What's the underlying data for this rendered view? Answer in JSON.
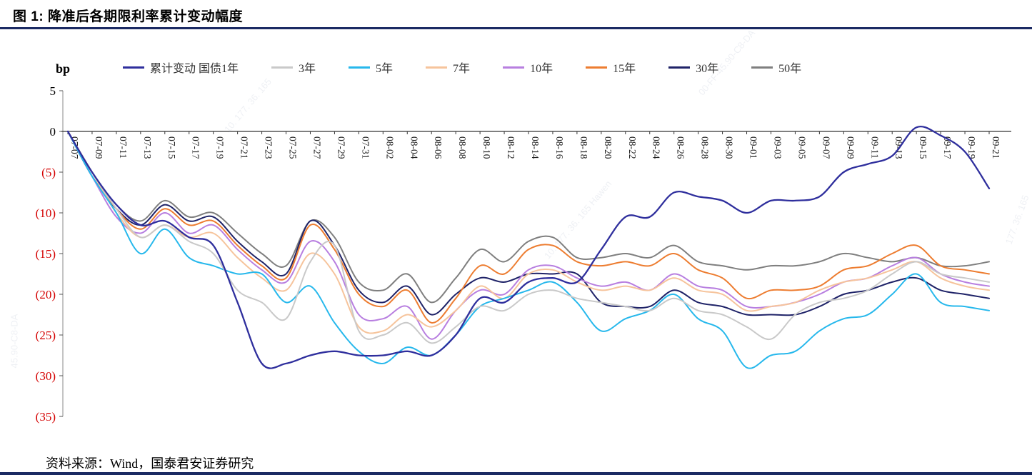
{
  "page": {
    "title": "图 1:  降准后各期限利率累计变动幅度",
    "source": "资料来源：Wind，国泰君安证券研究",
    "accent_color": "#1b2a63"
  },
  "watermarks": [
    "10. 177. 36. 165",
    "00-FF-45.90-C8-DA",
    "10. 177. 36. 165  Hawen",
    "45.90-C8-DA",
    "177. 36. 165"
  ],
  "chart_data": {
    "type": "line",
    "title": "降准后各期限利率累计变动幅度",
    "unit_label": "bp",
    "xlabel": "",
    "ylabel": "bp",
    "ylim": [
      -35,
      5
    ],
    "ytick_step": 5,
    "grid": "off",
    "legend_position": "top",
    "negative_tick_color": "#d40000",
    "axis_color": "#333333",
    "yticks": [
      {
        "value": 5,
        "label": "5"
      },
      {
        "value": 0,
        "label": "0"
      },
      {
        "value": -5,
        "label": "(5)"
      },
      {
        "value": -10,
        "label": "(10)"
      },
      {
        "value": -15,
        "label": "(15)"
      },
      {
        "value": -20,
        "label": "(20)"
      },
      {
        "value": -25,
        "label": "(25)"
      },
      {
        "value": -30,
        "label": "(30)"
      },
      {
        "value": -35,
        "label": "(35)"
      }
    ],
    "categories": [
      "07-07",
      "07-09",
      "07-11",
      "07-13",
      "07-15",
      "07-17",
      "07-19",
      "07-21",
      "07-23",
      "07-25",
      "07-27",
      "07-29",
      "07-31",
      "08-02",
      "08-04",
      "08-06",
      "08-08",
      "08-10",
      "08-12",
      "08-14",
      "08-16",
      "08-18",
      "08-20",
      "08-22",
      "08-24",
      "08-26",
      "08-28",
      "08-30",
      "09-01",
      "09-03",
      "09-05",
      "09-07",
      "09-09",
      "09-11",
      "09-13",
      "09-15",
      "09-17",
      "09-19",
      "09-21"
    ],
    "series": [
      {
        "name": "50年",
        "color": "#7f7f7f",
        "width": 2,
        "values": [
          0,
          -5,
          -9,
          -11,
          -8.5,
          -10.5,
          -10,
          -12.5,
          -15,
          -16.5,
          -11,
          -13,
          -18.5,
          -19.5,
          -17.5,
          -21,
          -18,
          -14.5,
          -16,
          -13.5,
          -13,
          -15.5,
          -15.5,
          -15,
          -15.5,
          -14,
          -16,
          -16.5,
          -17,
          -16.5,
          -16.5,
          -16,
          -15,
          -15.5,
          -16,
          -15.5,
          -16.5,
          -16.5,
          -16
        ]
      },
      {
        "name": "30年",
        "color": "#1f2368",
        "width": 2,
        "values": [
          0,
          -5.5,
          -9.5,
          -11.5,
          -9,
          -11,
          -10.5,
          -13.5,
          -16,
          -17.5,
          -11,
          -14,
          -19.5,
          -21,
          -19,
          -22.5,
          -20,
          -18,
          -18.5,
          -17.5,
          -17.5,
          -17.5,
          -21,
          -21.5,
          -21.5,
          -19.5,
          -21,
          -21.5,
          -22.5,
          -22.5,
          -22.5,
          -21.5,
          -20,
          -19.5,
          -18.5,
          -18,
          -19.5,
          -20,
          -20.5
        ]
      },
      {
        "name": "15年",
        "color": "#ed7d31",
        "width": 2,
        "values": [
          0,
          -5,
          -9.5,
          -12,
          -9.5,
          -11.5,
          -11,
          -14,
          -16.5,
          -18,
          -11.5,
          -14.5,
          -20,
          -21.5,
          -19.5,
          -23.5,
          -20.5,
          -16.5,
          -17.5,
          -14.5,
          -14,
          -16,
          -16.5,
          -16,
          -16.5,
          -15,
          -17,
          -18,
          -20.5,
          -19.5,
          -19.5,
          -19,
          -17,
          -16.5,
          -15,
          -14,
          -16.5,
          -17,
          -17.5
        ]
      },
      {
        "name": "10年",
        "color": "#b87fe0",
        "width": 2,
        "values": [
          0,
          -5.5,
          -10.5,
          -12.5,
          -10,
          -12.5,
          -11.5,
          -14.5,
          -17,
          -18.5,
          -13.5,
          -16,
          -22.5,
          -23,
          -21.5,
          -25.5,
          -22,
          -19.5,
          -20,
          -17,
          -16.5,
          -18,
          -19,
          -18.5,
          -19.5,
          -17.5,
          -19,
          -19.5,
          -21.5,
          -21.5,
          -21,
          -20,
          -18.5,
          -18,
          -16.5,
          -15.5,
          -17.5,
          -18.5,
          -19
        ]
      },
      {
        "name": "7年",
        "color": "#f6c49c",
        "width": 2,
        "values": [
          0,
          -5,
          -10,
          -13,
          -11.5,
          -13,
          -12.5,
          -15.5,
          -18,
          -19.5,
          -15,
          -17.5,
          -24,
          -24.5,
          -22.5,
          -24,
          -22,
          -19,
          -20.5,
          -17.5,
          -17,
          -18.5,
          -19.5,
          -19,
          -19.5,
          -18,
          -19.5,
          -20,
          -22,
          -21.5,
          -21,
          -19.5,
          -18.5,
          -18,
          -17,
          -16,
          -18,
          -19,
          -19.5
        ]
      },
      {
        "name": "5年",
        "color": "#27b8ec",
        "width": 2,
        "values": [
          0,
          -5.5,
          -10,
          -15,
          -12,
          -15.5,
          -16.5,
          -17.5,
          -17.5,
          -21,
          -19,
          -23.5,
          -27,
          -28.5,
          -26.5,
          -27.5,
          -25,
          -21.5,
          -20.5,
          -19.5,
          -18.5,
          -21,
          -24.5,
          -23,
          -22,
          -20,
          -23,
          -24.5,
          -29,
          -27.5,
          -27,
          -24.5,
          -23,
          -22.5,
          -20,
          -17.5,
          -21,
          -21.5,
          -22
        ]
      },
      {
        "name": "3年",
        "color": "#c9c9c9",
        "width": 2,
        "values": [
          0,
          -5,
          -9.5,
          -13,
          -11.5,
          -13.5,
          -15,
          -19.5,
          -21,
          -23,
          -16,
          -14,
          -24.5,
          -25,
          -23.5,
          -26,
          -24,
          -21.5,
          -22,
          -20,
          -19.5,
          -20.5,
          -21,
          -21.5,
          -22,
          -20.5,
          -22,
          -22.5,
          -24,
          -25.5,
          -22.5,
          -21,
          -20.5,
          -19.5,
          -17.5,
          -16,
          -17.5,
          -18,
          -18.5
        ]
      },
      {
        "name": "累计变动 国债1年",
        "color": "#2f2f9d",
        "width": 2.3,
        "values": [
          0,
          -5,
          -9,
          -11.5,
          -11,
          -13,
          -14,
          -21,
          -28.5,
          -28.5,
          -27.5,
          -27,
          -27.5,
          -27.5,
          -27,
          -27.5,
          -25,
          -20.5,
          -21,
          -18.5,
          -18,
          -18.5,
          -14.5,
          -10.5,
          -10.5,
          -7.5,
          -8,
          -8.5,
          -10,
          -8.5,
          -8.5,
          -8,
          -5,
          -4,
          -3,
          0.5,
          -0.5,
          -2.5,
          -7
        ]
      }
    ],
    "legend_order": [
      "累计变动 国债1年",
      "3年",
      "5年",
      "7年",
      "10年",
      "15年",
      "30年",
      "50年"
    ]
  }
}
